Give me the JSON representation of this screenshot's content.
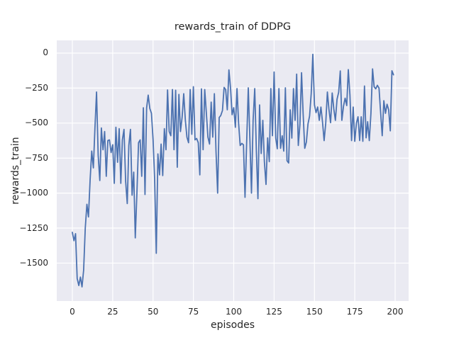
{
  "figure": {
    "background": "#ffffff"
  },
  "chart_data": {
    "type": "line",
    "title": "rewards_train of DDPG",
    "xlabel": "episodes",
    "ylabel": "rewards_train",
    "grid": true,
    "legend": "none",
    "style": {
      "plot_background": "#eaeaf2",
      "grid_color": "#ffffff",
      "line_color": "#4c72b0",
      "text_color": "#262626",
      "line_width": 1.8
    },
    "xlim": [
      -9.67,
      208.35
    ],
    "ylim": [
      -1771,
      91
    ],
    "x_ticks": [
      {
        "value": 0,
        "label": "0"
      },
      {
        "value": 25,
        "label": "25"
      },
      {
        "value": 50,
        "label": "50"
      },
      {
        "value": 75,
        "label": "75"
      },
      {
        "value": 100,
        "label": "100"
      },
      {
        "value": 125,
        "label": "125"
      },
      {
        "value": 150,
        "label": "150"
      },
      {
        "value": 175,
        "label": "175"
      },
      {
        "value": 200,
        "label": "200"
      }
    ],
    "y_ticks": [
      {
        "value": 0,
        "label": "0"
      },
      {
        "value": -250,
        "label": "−250"
      },
      {
        "value": -500,
        "label": "−500"
      },
      {
        "value": -750,
        "label": "−750"
      },
      {
        "value": -1000,
        "label": "−1000"
      },
      {
        "value": -1250,
        "label": "−1250"
      },
      {
        "value": -1500,
        "label": "−1500"
      }
    ],
    "series": [
      {
        "name": "rewards_train",
        "x_start": 0,
        "x_step": 1,
        "values": [
          -1280,
          -1340,
          -1290,
          -1610,
          -1660,
          -1600,
          -1670,
          -1550,
          -1250,
          -1080,
          -1170,
          -910,
          -700,
          -820,
          -540,
          -278,
          -730,
          -910,
          -535,
          -690,
          -560,
          -880,
          -625,
          -620,
          -710,
          -655,
          -930,
          -530,
          -780,
          -540,
          -930,
          -620,
          -545,
          -915,
          -1075,
          -660,
          -545,
          -1015,
          -850,
          -1320,
          -1000,
          -640,
          -620,
          -880,
          -390,
          -1010,
          -390,
          -300,
          -395,
          -430,
          -620,
          -900,
          -1430,
          -720,
          -870,
          -650,
          -875,
          -540,
          -690,
          -263,
          -560,
          -590,
          -260,
          -690,
          -265,
          -815,
          -295,
          -560,
          -460,
          -290,
          -480,
          -600,
          -640,
          -260,
          -580,
          -240,
          -620,
          -610,
          -640,
          -870,
          -255,
          -690,
          -260,
          -420,
          -600,
          -650,
          -350,
          -600,
          -290,
          -700,
          -1000,
          -460,
          -445,
          -410,
          -245,
          -260,
          -405,
          -120,
          -250,
          -440,
          -390,
          -530,
          -253,
          -497,
          -660,
          -645,
          -655,
          -1030,
          -640,
          -248,
          -620,
          -1000,
          -480,
          -253,
          -700,
          -1040,
          -370,
          -717,
          -480,
          -775,
          -938,
          -605,
          -775,
          -253,
          -590,
          -135,
          -607,
          -683,
          -253,
          -680,
          -590,
          -700,
          -248,
          -768,
          -785,
          -405,
          -607,
          -253,
          -480,
          -150,
          -660,
          -510,
          -140,
          -430,
          -680,
          -635,
          -505,
          -450,
          -290,
          -8,
          -370,
          -425,
          -385,
          -480,
          -385,
          -490,
          -625,
          -500,
          -278,
          -400,
          -497,
          -285,
          -400,
          -480,
          -330,
          -280,
          -127,
          -480,
          -380,
          -322,
          -375,
          -118,
          -300,
          -625,
          -385,
          -630,
          -500,
          -455,
          -625,
          -455,
          -630,
          -235,
          -605,
          -490,
          -625,
          -430,
          -113,
          -240,
          -255,
          -230,
          -250,
          -420,
          -590,
          -340,
          -430,
          -365,
          -405,
          -555,
          -126,
          -155
        ]
      }
    ]
  }
}
